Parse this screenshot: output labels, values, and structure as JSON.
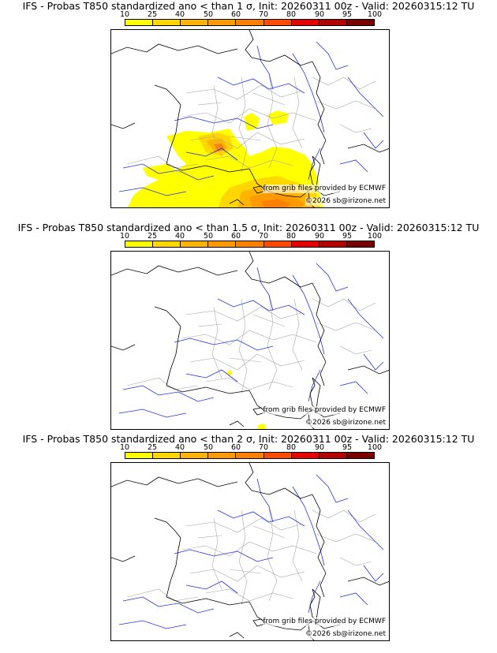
{
  "colors": {
    "scale": [
      "#ffff00",
      "#ffd700",
      "#ffb400",
      "#ff9a00",
      "#ff7f00",
      "#ff4a00",
      "#e60000",
      "#b40000",
      "#7a0000"
    ],
    "coast": "#000000",
    "rivers": "#2233dd",
    "admin": "#a8a8a8"
  },
  "colorbar": {
    "ticks": [
      "10",
      "25",
      "40",
      "50",
      "60",
      "70",
      "80",
      "90",
      "95",
      "100"
    ]
  },
  "credits": {
    "source": "from grib files provided by ECMWF",
    "copyright": "©2026 sb@irizone.net"
  },
  "panels": [
    {
      "title": "IFS - Probas T850  standardized ano < than 1 σ, Init: 20260311 00z - Valid: 20260315:12 TU"
    },
    {
      "title": "IFS - Probas T850  standardized ano < than 1.5 σ, Init: 20260311 00z - Valid: 20260315:12 TU"
    },
    {
      "title": "IFS - Probas T850  standardized ano < than 2 σ, Init: 20260311 00z - Valid: 20260315:12 TU"
    }
  ]
}
